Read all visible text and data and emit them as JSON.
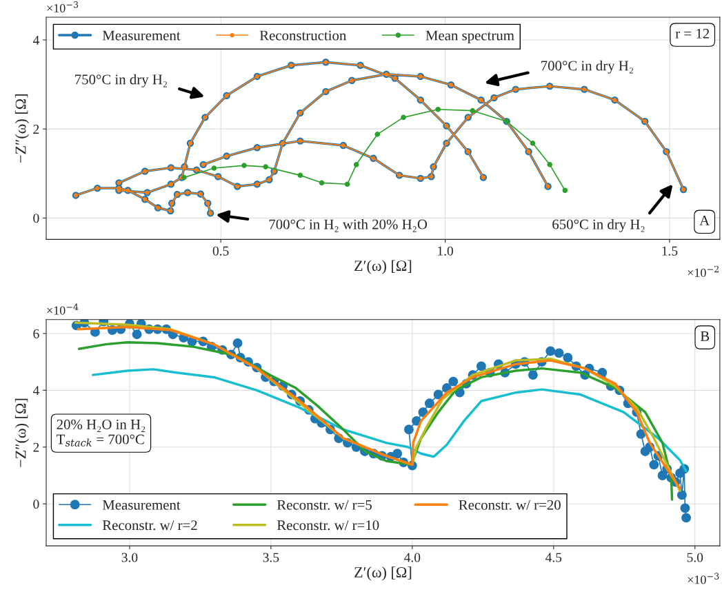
{
  "chart_data": [
    {
      "type": "line",
      "xlabel": "Z′(ω) [Ω]",
      "ylabel": "−Z″(ω) [Ω]",
      "xlim": [
        0.111,
        1.612
      ],
      "ylim": [
        -0.48,
        4.51
      ],
      "xticks": [
        0.5,
        {
          "value": 1.0,
          "label": "1.0"
        },
        1.5
      ],
      "yticks": [
        0,
        2,
        4
      ],
      "grid": true,
      "legend": "top left",
      "marker": "circle",
      "series": [
        {
          "name": "Measurement",
          "color": "#1f77b4",
          "x": [
            0.177,
            0.225,
            0.273,
            0.293,
            0.331,
            0.36,
            0.388,
            0.391,
            0.403,
            0.426,
            0.455,
            0.471,
            0.477,
            null,
            0.273,
            0.336,
            0.389,
            0.413,
            0.419,
            0.432,
            0.465,
            0.513,
            0.581,
            0.657,
            0.734,
            0.811,
            0.888,
            0.945,
            1.003,
            1.051,
            1.085,
            null,
            0.273,
            0.331,
            0.389,
            0.446,
            0.494,
            0.537,
            0.581,
            0.608,
            0.619,
            0.638,
            0.677,
            0.734,
            0.792,
            0.869,
            0.945,
            1.013,
            1.08,
            1.137,
            1.186,
            1.229,
            null,
            0.461,
            0.513,
            0.581,
            0.677,
            0.773,
            0.84,
            0.898,
            0.945,
            0.969,
            0.974,
            1.003,
            1.051,
            1.109,
            1.157,
            1.233,
            1.31,
            1.378,
            1.445,
            1.493,
            1.531
          ],
          "values": [
            0.51,
            0.67,
            0.67,
            0.62,
            0.42,
            0.23,
            0.16,
            0.33,
            0.53,
            0.57,
            0.54,
            0.33,
            0.11,
            null,
            0.62,
            0.57,
            0.76,
            0.91,
            1.15,
            1.68,
            2.26,
            2.75,
            3.18,
            3.43,
            3.5,
            3.43,
            3.14,
            2.65,
            2.07,
            1.49,
            0.91,
            null,
            0.79,
            1.05,
            1.13,
            1.08,
            0.93,
            0.71,
            0.76,
            0.86,
            1.05,
            1.68,
            2.36,
            2.84,
            3.09,
            3.23,
            3.18,
            2.99,
            2.65,
            2.17,
            1.49,
            0.71,
            null,
            1.2,
            1.39,
            1.58,
            1.73,
            1.63,
            1.34,
            0.96,
            0.89,
            0.93,
            1.15,
            1.68,
            2.26,
            2.7,
            2.89,
            2.96,
            2.89,
            2.65,
            2.17,
            1.49,
            0.64
          ]
        },
        {
          "name": "Reconstruction",
          "color": "#ff7f0e",
          "x": [
            0.177,
            0.225,
            0.273,
            0.293,
            0.331,
            0.36,
            0.388,
            0.391,
            0.403,
            0.426,
            0.455,
            0.471,
            0.477,
            null,
            0.273,
            0.336,
            0.389,
            0.413,
            0.419,
            0.432,
            0.465,
            0.513,
            0.581,
            0.657,
            0.734,
            0.811,
            0.888,
            0.945,
            1.003,
            1.051,
            1.085,
            null,
            0.273,
            0.331,
            0.389,
            0.446,
            0.494,
            0.537,
            0.581,
            0.608,
            0.619,
            0.638,
            0.677,
            0.734,
            0.792,
            0.869,
            0.945,
            1.013,
            1.08,
            1.137,
            1.186,
            1.229,
            null,
            0.461,
            0.513,
            0.581,
            0.677,
            0.773,
            0.84,
            0.898,
            0.945,
            0.969,
            0.974,
            1.003,
            1.051,
            1.109,
            1.157,
            1.233,
            1.31,
            1.378,
            1.445,
            1.493,
            1.531
          ],
          "values": [
            0.51,
            0.67,
            0.67,
            0.62,
            0.42,
            0.23,
            0.16,
            0.33,
            0.53,
            0.57,
            0.54,
            0.33,
            0.11,
            null,
            0.62,
            0.57,
            0.76,
            0.91,
            1.15,
            1.68,
            2.26,
            2.75,
            3.18,
            3.43,
            3.5,
            3.43,
            3.14,
            2.65,
            2.07,
            1.49,
            0.91,
            null,
            0.79,
            1.05,
            1.13,
            1.08,
            0.93,
            0.71,
            0.76,
            0.86,
            1.05,
            1.68,
            2.36,
            2.84,
            3.09,
            3.23,
            3.18,
            2.99,
            2.65,
            2.17,
            1.49,
            0.71,
            null,
            1.2,
            1.39,
            1.58,
            1.73,
            1.63,
            1.34,
            0.96,
            0.89,
            0.93,
            1.15,
            1.68,
            2.26,
            2.7,
            2.89,
            2.96,
            2.89,
            2.65,
            2.17,
            1.49,
            0.64
          ]
        },
        {
          "name": "Mean spectrum",
          "color": "#2ca02c",
          "x": [
            0.418,
            0.485,
            0.552,
            0.6,
            0.677,
            0.725,
            0.782,
            0.802,
            0.849,
            0.907,
            0.984,
            1.061,
            1.137,
            1.195,
            1.233,
            1.267
          ],
          "values": [
            0.91,
            1.12,
            1.18,
            1.15,
            0.96,
            0.79,
            0.76,
            1.2,
            1.88,
            2.26,
            2.44,
            2.41,
            2.17,
            1.68,
            1.2,
            0.62
          ]
        }
      ],
      "annotations": [
        "×10$^{−3}$",
        "×10$^{−2}$",
        "r = 12",
        "A",
        "750°C in dry H₂",
        "700°C in dry H₂",
        "700°C in H₂ with 20% H₂O",
        "650°C in dry H₂"
      ]
    },
    {
      "type": "line",
      "xlabel": "Z′(ω) [Ω]",
      "ylabel": "−Z″(ω) [Ω]",
      "xlim": [
        2.705,
        5.088
      ],
      "ylim": [
        -1.48,
        6.49
      ],
      "xticks": [
        {
          "value": 3.0,
          "label": "3.0"
        },
        3.5,
        {
          "value": 4.0,
          "label": "4.0"
        },
        4.5,
        {
          "value": 5.0,
          "label": "5.0"
        }
      ],
      "yticks": [
        0,
        2,
        4,
        6
      ],
      "grid": true,
      "legend": "bottom left",
      "series": [
        {
          "name": "Measurement",
          "color": "#1f77b4",
          "marker": "circle",
          "x": [
            2.812,
            2.84,
            2.878,
            2.908,
            2.939,
            2.969,
            3.0,
            3.026,
            3.041,
            3.069,
            3.099,
            3.13,
            3.153,
            3.191,
            3.221,
            3.26,
            3.29,
            3.328,
            3.359,
            3.382,
            3.392,
            3.42,
            3.45,
            3.481,
            3.511,
            3.542,
            3.573,
            3.603,
            3.634,
            3.656,
            3.679,
            3.71,
            3.74,
            3.771,
            3.802,
            3.832,
            3.863,
            3.893,
            3.924,
            3.947,
            3.969,
            4.0,
            3.988,
            4.015,
            4.038,
            4.061,
            4.092,
            4.122,
            4.145,
            4.168,
            4.191,
            4.214,
            4.244,
            4.275,
            4.305,
            4.328,
            4.366,
            4.397,
            4.427,
            4.458,
            4.489,
            4.519,
            4.55,
            4.58,
            4.611,
            4.626,
            4.672,
            4.702,
            4.733,
            4.763,
            4.794,
            4.809,
            4.824,
            4.84,
            4.855,
            4.87,
            4.885,
            4.901,
            4.916,
            4.931,
            4.947,
            4.954,
            4.962,
            4.965,
            4.969
          ],
          "values": [
            6.28,
            6.38,
            6.05,
            6.42,
            6.12,
            6.15,
            6.34,
            5.97,
            6.34,
            6.15,
            6.15,
            6.15,
            5.97,
            5.85,
            5.72,
            5.72,
            5.54,
            5.42,
            5.26,
            5.66,
            5.15,
            5.0,
            4.8,
            4.46,
            4.31,
            4.15,
            3.85,
            3.62,
            3.31,
            3.0,
            2.85,
            2.62,
            2.31,
            2.15,
            2.0,
            1.85,
            1.77,
            1.69,
            1.66,
            1.77,
            1.46,
            1.35,
            2.62,
            2.92,
            3.23,
            3.54,
            3.85,
            4.08,
            4.31,
            3.92,
            4.23,
            4.54,
            4.85,
            4.62,
            4.92,
            4.62,
            4.92,
            5.0,
            4.54,
            5.0,
            5.38,
            5.31,
            5.15,
            4.85,
            4.54,
            4.77,
            4.62,
            4.15,
            4.0,
            3.54,
            3.23,
            2.46,
            1.85,
            2.0,
            1.38,
            1.69,
            1.0,
            1.23,
            0.92,
            0.77,
            1.08,
            0.31,
            1.23,
            -0.15,
            -0.49
          ]
        },
        {
          "name": "Reconstr. w/ r=2",
          "color": "#17becf",
          "x": [
            2.87,
            2.992,
            3.084,
            3.145,
            3.298,
            3.45,
            3.603,
            3.756,
            3.908,
            3.985,
            4.031,
            4.076,
            4.122,
            4.183,
            4.244,
            4.366,
            4.458,
            4.595,
            4.748,
            4.87,
            4.947,
            4.969
          ],
          "values": [
            4.54,
            4.69,
            4.74,
            4.65,
            4.46,
            4.0,
            3.38,
            2.62,
            2.15,
            2.0,
            1.77,
            1.66,
            2.08,
            2.92,
            3.62,
            3.92,
            4.03,
            3.85,
            3.23,
            2.31,
            1.54,
            1.15
          ]
        },
        {
          "name": "Reconstr. w/ r=5",
          "color": "#2ca02c",
          "x": [
            2.821,
            2.916,
            2.992,
            3.099,
            3.221,
            3.374,
            3.496,
            3.588,
            3.664,
            3.756,
            3.832,
            3.908,
            3.997,
            4.031,
            4.092,
            4.153,
            4.244,
            4.366,
            4.458,
            4.595,
            4.718,
            4.824,
            4.885,
            4.916,
            4.919
          ],
          "values": [
            5.46,
            5.62,
            5.69,
            5.66,
            5.54,
            5.23,
            4.54,
            4.08,
            3.46,
            2.62,
            1.85,
            1.51,
            1.38,
            2.31,
            3.23,
            4.0,
            4.46,
            4.69,
            4.77,
            4.62,
            4.08,
            3.23,
            2.15,
            0.92,
            0.15
          ]
        },
        {
          "name": "Reconstr. w/ r=10",
          "color": "#bcbd22",
          "x": [
            2.809,
            2.992,
            3.145,
            3.298,
            3.45,
            3.603,
            3.756,
            3.908,
            4.0,
            4.015,
            4.046,
            4.107,
            4.214,
            4.366,
            4.489,
            4.611,
            4.718,
            4.794,
            4.855,
            4.916,
            4.947
          ],
          "values": [
            6.38,
            6.31,
            6.15,
            5.62,
            4.77,
            3.54,
            2.31,
            1.69,
            1.38,
            2.0,
            2.62,
            3.69,
            4.54,
            5.05,
            5.11,
            4.77,
            4.15,
            3.38,
            2.31,
            1.08,
            0.46
          ]
        },
        {
          "name": "Reconstr. w/ r=20",
          "color": "#ff7f0e",
          "x": [
            2.817,
            2.992,
            3.145,
            3.298,
            3.45,
            3.603,
            3.756,
            3.908,
            4.0,
            4.003,
            4.031,
            4.122,
            4.214,
            4.366,
            4.489,
            4.611,
            4.718,
            4.794,
            4.84,
            4.901,
            4.947
          ],
          "values": [
            6.15,
            6.23,
            6.12,
            5.62,
            4.77,
            3.62,
            2.31,
            1.69,
            1.38,
            2.15,
            2.92,
            3.92,
            4.46,
            4.92,
            5.05,
            4.77,
            4.23,
            3.23,
            2.15,
            1.23,
            0.54
          ]
        }
      ],
      "annotations": [
        "×10$^{−4}$",
        "×10$^{−3}$",
        "B",
        "20% H₂O in H₂\nT$_{stack}$ = 700°C"
      ]
    }
  ]
}
